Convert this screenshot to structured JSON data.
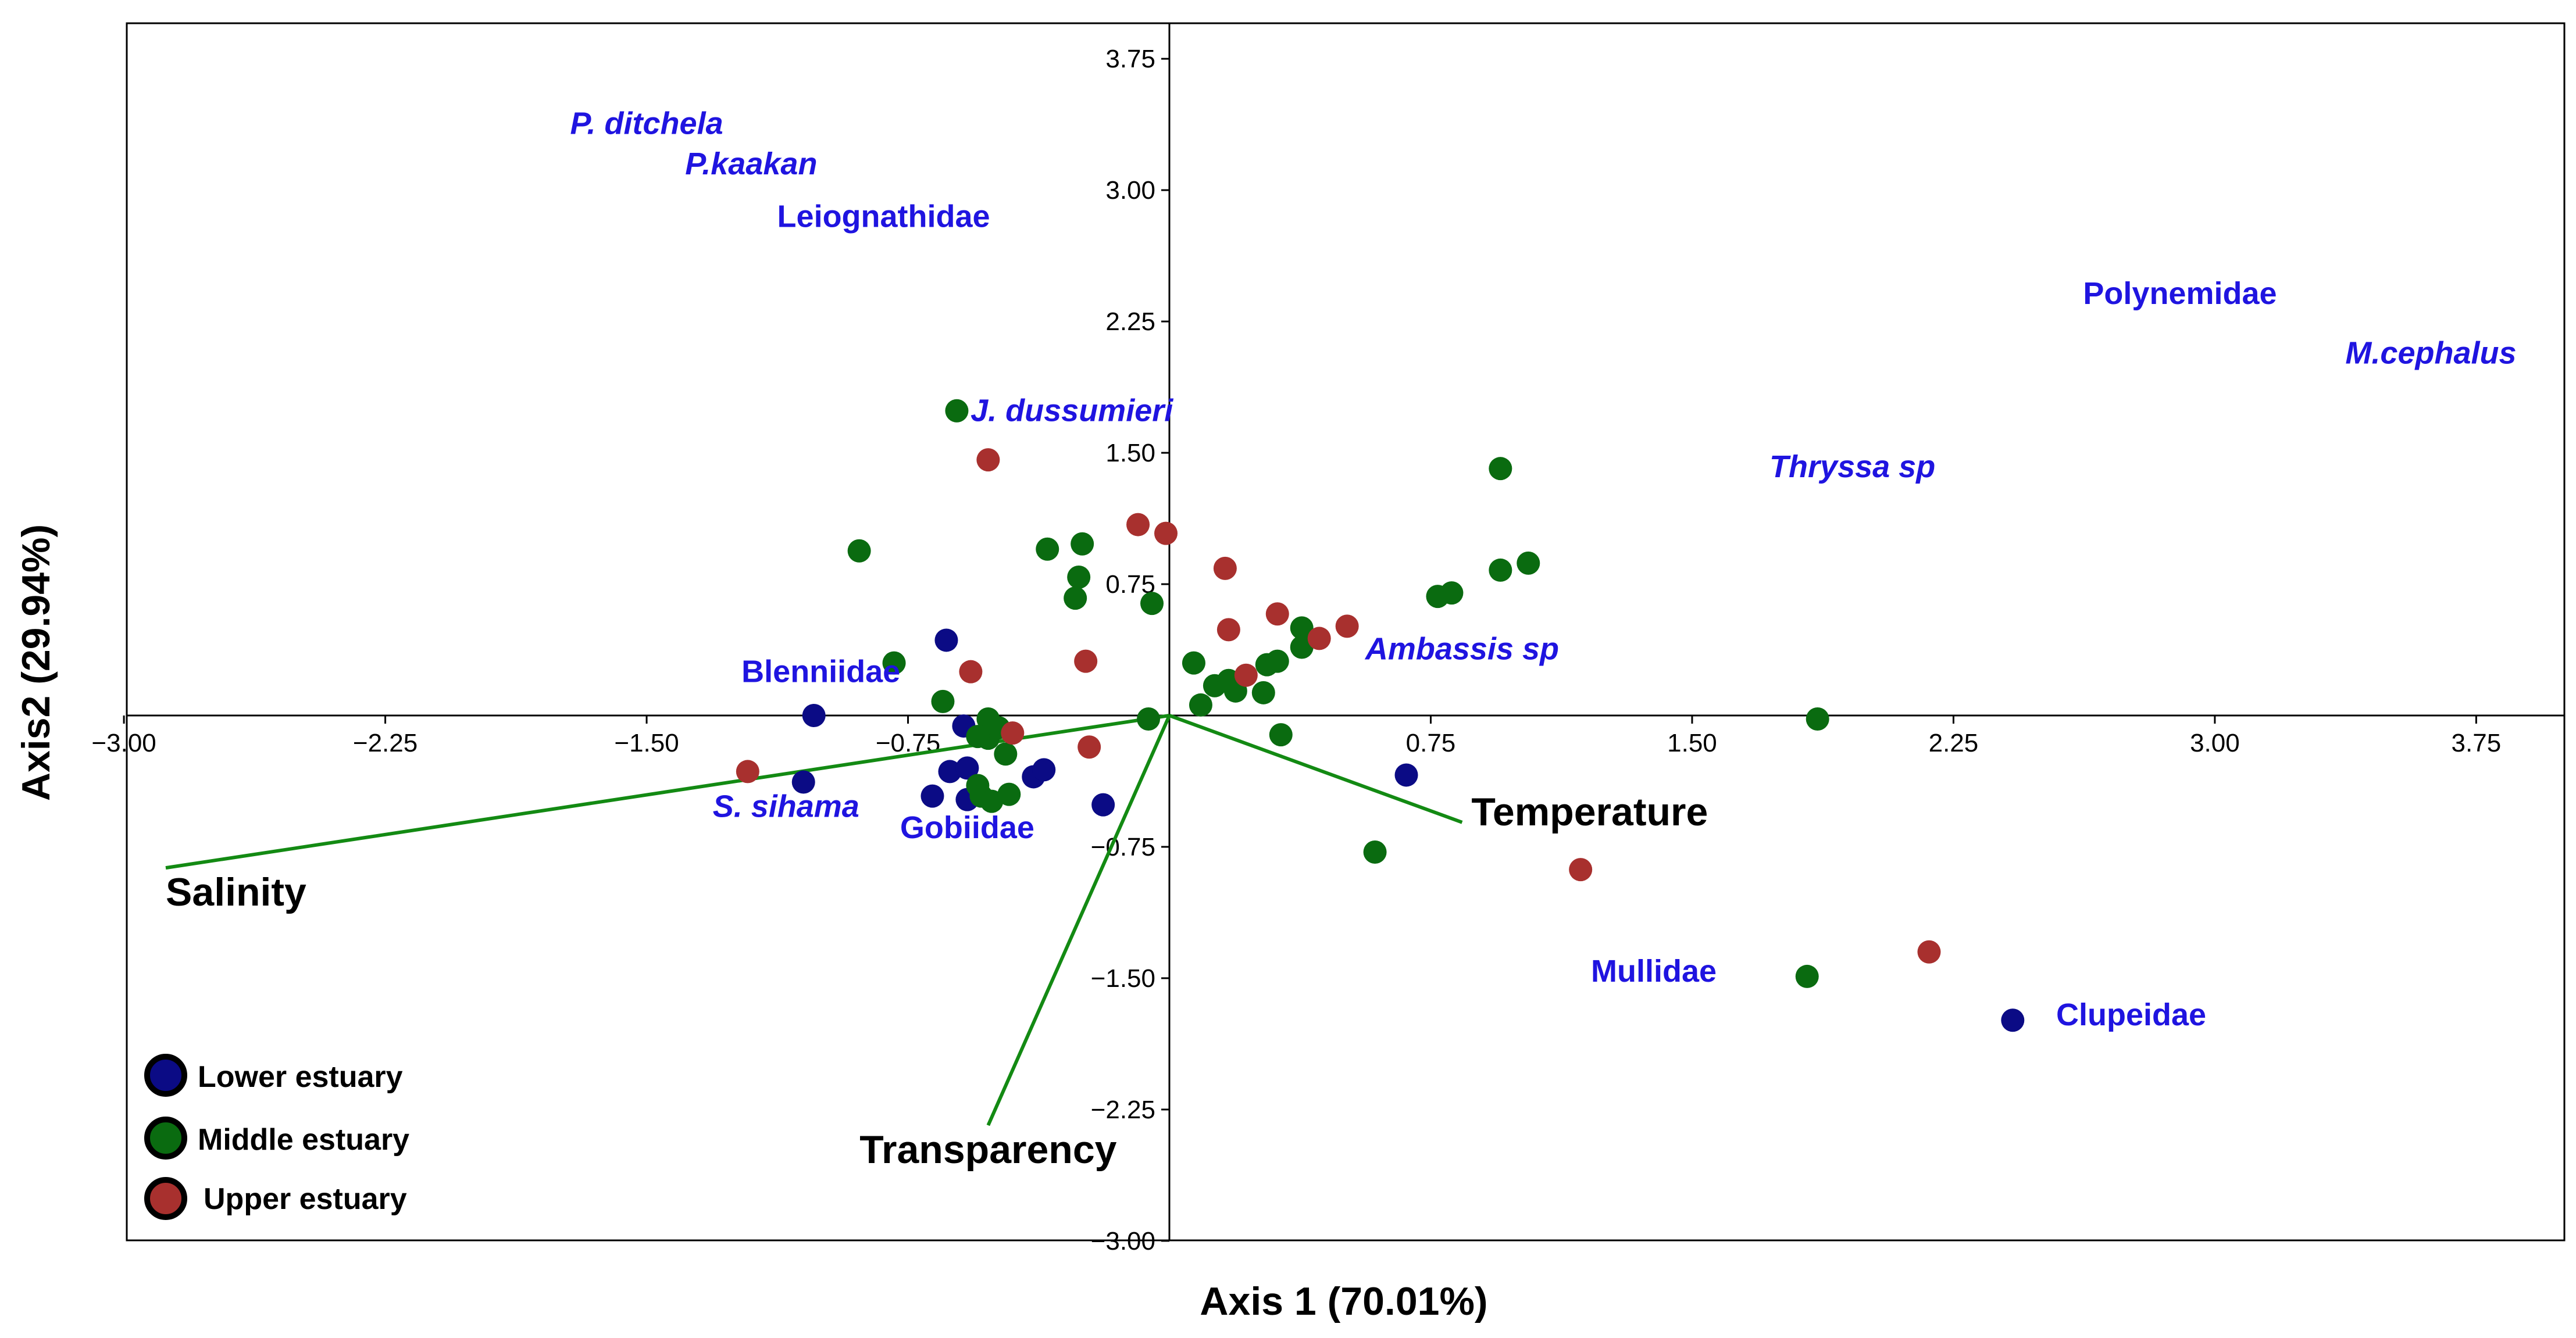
{
  "chart_data": {
    "type": "scatter",
    "subtype": "CCA biplot",
    "xlabel": "Axis 1 (70.01%)",
    "ylabel": "Axis2 (29.94%)",
    "xlim": [
      -3.0,
      4.0
    ],
    "ylim": [
      -3.0,
      4.0
    ],
    "x_ticks": [
      -3.0,
      -2.25,
      -1.5,
      -0.75,
      0.75,
      1.5,
      2.25,
      3.0,
      3.75
    ],
    "x_tick_labels": [
      "−3.00",
      "−2.25",
      "−1.50",
      "−0.75",
      "0.75",
      "1.50",
      "2.25",
      "3.00",
      "3.75"
    ],
    "y_ticks": [
      3.75,
      3.0,
      2.25,
      1.5,
      0.75,
      -0.75,
      -1.5,
      -2.25,
      -3.0
    ],
    "y_tick_labels": [
      "3.75",
      "3.00",
      "2.25",
      "1.50",
      "0.75",
      "−0.75",
      "−1.50",
      "−2.25",
      "−3.00"
    ],
    "colors": {
      "lower": "#0b0b85",
      "middle": "#0a6b10",
      "upper": "#a8302e",
      "vector": "#138a13",
      "species": "#1f14e0"
    },
    "legend": [
      {
        "label": "Lower estuary",
        "color": "#0b0b85"
      },
      {
        "label": "Middle estuary",
        "color": "#0a6b10"
      },
      {
        "label": "Upper estuary",
        "color": "#a8302e"
      }
    ],
    "series": [
      {
        "name": "Lower estuary",
        "points": [
          [
            -1.02,
            0.0
          ],
          [
            -1.05,
            -0.38
          ],
          [
            -0.64,
            0.43
          ],
          [
            -0.59,
            -0.06
          ],
          [
            -0.63,
            -0.32
          ],
          [
            -0.58,
            -0.3
          ],
          [
            -0.68,
            -0.46
          ],
          [
            -0.58,
            -0.48
          ],
          [
            -0.39,
            -0.35
          ],
          [
            -0.36,
            -0.31
          ],
          [
            -0.19,
            -0.51
          ],
          [
            0.68,
            -0.34
          ],
          [
            2.42,
            -1.74
          ]
        ]
      },
      {
        "name": "Middle estuary",
        "points": [
          [
            -0.61,
            1.74
          ],
          [
            -0.89,
            0.94
          ],
          [
            -0.79,
            0.3
          ],
          [
            -0.65,
            0.08
          ],
          [
            -0.52,
            -0.02
          ],
          [
            -0.52,
            -0.13
          ],
          [
            -0.49,
            -0.07
          ],
          [
            -0.55,
            -0.12
          ],
          [
            -0.47,
            -0.22
          ],
          [
            -0.55,
            -0.4
          ],
          [
            -0.54,
            -0.46
          ],
          [
            -0.51,
            -0.49
          ],
          [
            -0.46,
            -0.45
          ],
          [
            -0.35,
            0.95
          ],
          [
            -0.25,
            0.98
          ],
          [
            -0.26,
            0.79
          ],
          [
            -0.27,
            0.67
          ],
          [
            -0.05,
            0.64
          ],
          [
            -0.06,
            -0.02
          ],
          [
            0.07,
            0.3
          ],
          [
            0.09,
            0.06
          ],
          [
            0.13,
            0.17
          ],
          [
            0.17,
            0.2
          ],
          [
            0.19,
            0.14
          ],
          [
            0.27,
            0.13
          ],
          [
            0.28,
            0.29
          ],
          [
            0.31,
            0.31
          ],
          [
            0.38,
            0.5
          ],
          [
            0.38,
            0.39
          ],
          [
            0.32,
            -0.11
          ],
          [
            0.59,
            -0.78
          ],
          [
            0.77,
            0.68
          ],
          [
            0.81,
            0.7
          ],
          [
            0.95,
            1.41
          ],
          [
            0.95,
            0.83
          ],
          [
            1.03,
            0.87
          ],
          [
            1.86,
            -0.02
          ],
          [
            1.83,
            -1.49
          ]
        ]
      },
      {
        "name": "Upper estuary",
        "points": [
          [
            -0.52,
            1.46
          ],
          [
            -0.57,
            0.25
          ],
          [
            -0.45,
            -0.1
          ],
          [
            -0.24,
            0.31
          ],
          [
            -0.23,
            -0.18
          ],
          [
            -0.09,
            1.09
          ],
          [
            -0.01,
            1.04
          ],
          [
            0.16,
            0.84
          ],
          [
            0.17,
            0.49
          ],
          [
            0.22,
            0.23
          ],
          [
            0.31,
            0.58
          ],
          [
            0.43,
            0.44
          ],
          [
            0.51,
            0.51
          ],
          [
            -1.21,
            -0.32
          ],
          [
            1.18,
            -0.88
          ],
          [
            2.18,
            -1.35
          ]
        ]
      }
    ],
    "environmental_vectors": [
      {
        "label": "Salinity",
        "x": -2.88,
        "y": -0.87
      },
      {
        "label": "Temperature",
        "x": 0.84,
        "y": -0.61
      },
      {
        "label": "Transparency",
        "x": -0.52,
        "y": -2.34
      }
    ],
    "species_labels": [
      {
        "label": "P. ditchela",
        "italic": true,
        "x": -1.5,
        "y": 3.38
      },
      {
        "label": "P.kaakan",
        "italic": true,
        "x": -1.2,
        "y": 3.15
      },
      {
        "label": "Leiognathidae",
        "italic": false,
        "x": -0.82,
        "y": 2.85
      },
      {
        "label": "J. dussumieri",
        "italic": true,
        "x": -0.28,
        "y": 1.74
      },
      {
        "label": "Polynemidae",
        "italic": false,
        "x": 2.9,
        "y": 2.41
      },
      {
        "label": "M.cephalus",
        "italic": true,
        "x": 3.62,
        "y": 2.07
      },
      {
        "label": "Thryssa sp",
        "italic": true,
        "x": 1.96,
        "y": 1.42
      },
      {
        "label": "Ambassis sp",
        "italic": true,
        "x": 0.84,
        "y": 0.38
      },
      {
        "label": "Blenniidae",
        "italic": false,
        "x": -1.0,
        "y": 0.25
      },
      {
        "label": "S. sihama",
        "italic": true,
        "x": -1.1,
        "y": -0.52
      },
      {
        "label": "Gobiidae",
        "italic": false,
        "x": -0.58,
        "y": -0.64
      },
      {
        "label": "Mullidae",
        "italic": false,
        "x": 1.39,
        "y": -1.46
      },
      {
        "label": "Clupeidae",
        "italic": false,
        "x": 2.76,
        "y": -1.71
      }
    ]
  }
}
